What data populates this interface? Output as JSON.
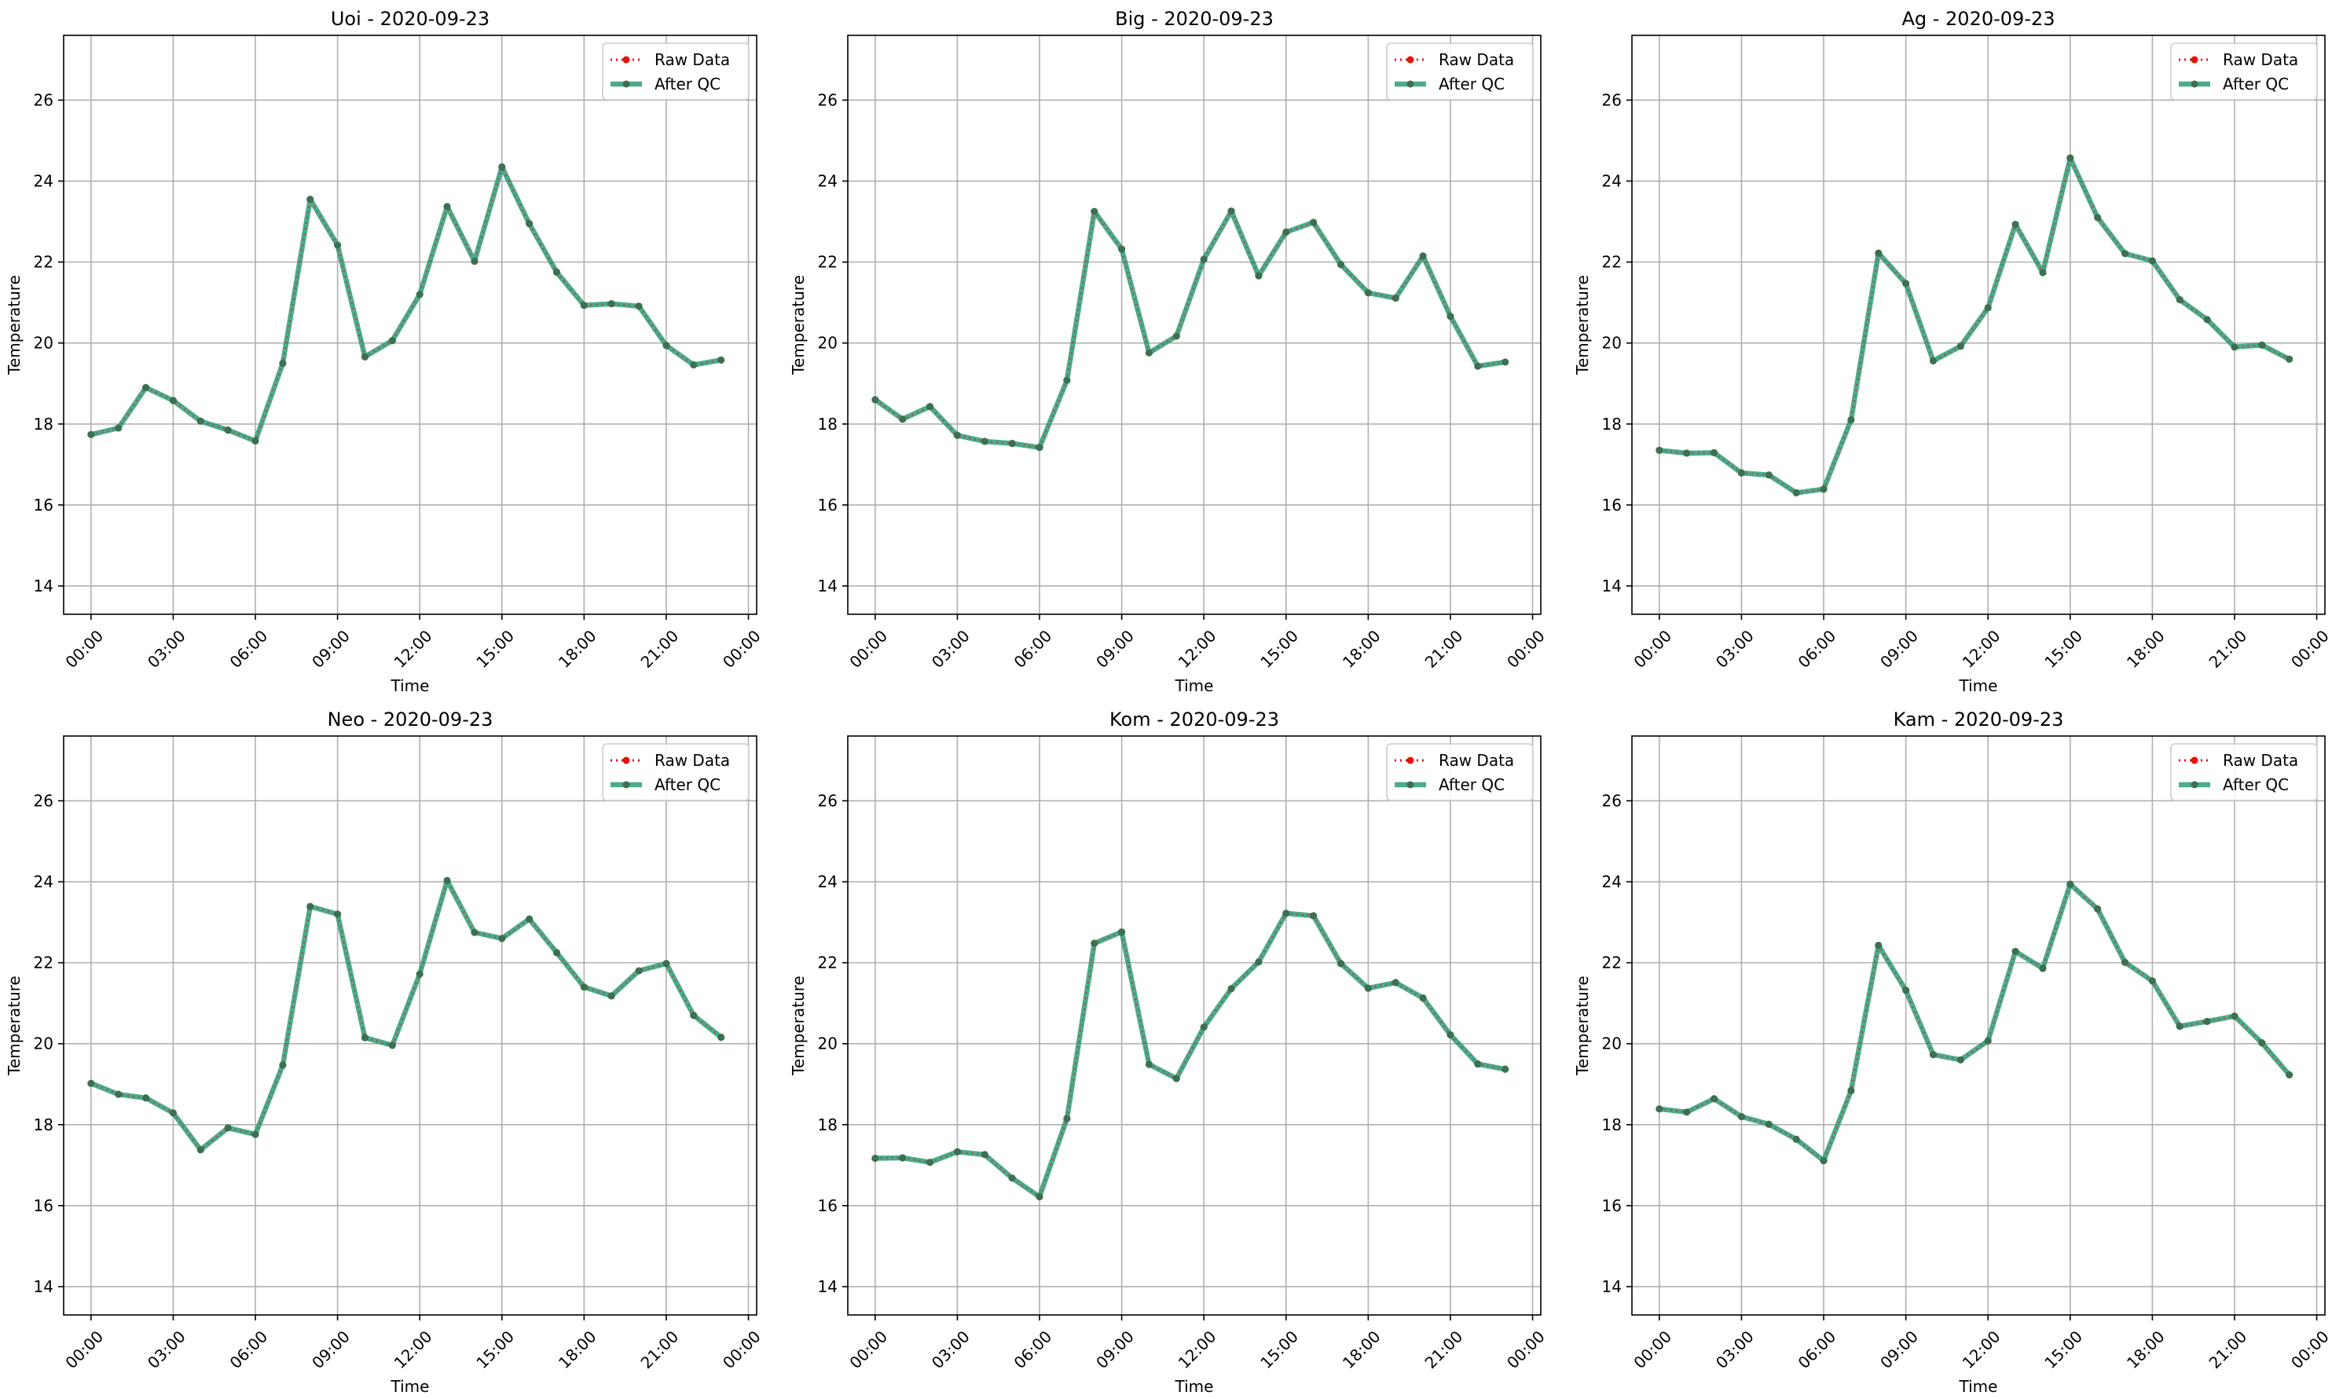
{
  "figure": {
    "x_axis_label": "Time",
    "y_axis_label": "Temperature",
    "legend": {
      "placement": "upper right",
      "raw_label": "Raw Data",
      "qc_label": "After QC"
    },
    "colors": {
      "raw": "#e3120b",
      "qc": "#2a9d78",
      "marker": "#3d7050",
      "grid": "#b0b0b0"
    }
  },
  "chart_data": [
    {
      "type": "line",
      "title": "Uoi - 2020-09-23",
      "xlabel": "Time",
      "ylabel": "Temperature",
      "xlim": [
        -1.0,
        24.3
      ],
      "ylim": [
        13.3,
        27.6
      ],
      "xticks": [
        "00:00",
        "03:00",
        "06:00",
        "09:00",
        "12:00",
        "15:00",
        "18:00",
        "21:00",
        "00:00"
      ],
      "yticks": [
        14,
        16,
        18,
        20,
        22,
        24,
        26
      ],
      "grid": true,
      "legend": "upper right",
      "x": [
        0,
        1,
        2,
        3,
        4,
        5,
        6,
        7,
        8,
        9,
        10,
        11,
        12,
        13,
        14,
        15,
        16,
        17,
        18,
        19,
        20,
        21,
        22,
        23
      ],
      "series": [
        {
          "name": "Raw Data",
          "values": [
            17.74,
            17.9,
            18.9,
            18.58,
            18.07,
            17.85,
            17.58,
            19.5,
            23.55,
            22.42,
            19.66,
            20.06,
            21.2,
            23.37,
            22.02,
            24.35,
            22.95,
            21.75,
            20.93,
            20.97,
            20.91,
            19.94,
            19.46,
            19.58
          ]
        },
        {
          "name": "After QC",
          "values": [
            17.74,
            17.9,
            18.9,
            18.58,
            18.07,
            17.85,
            17.58,
            19.5,
            23.55,
            22.42,
            19.66,
            20.06,
            21.2,
            23.37,
            22.02,
            24.35,
            22.95,
            21.75,
            20.93,
            20.97,
            20.91,
            19.94,
            19.46,
            19.58
          ]
        }
      ]
    },
    {
      "type": "line",
      "title": "Big - 2020-09-23",
      "xlabel": "Time",
      "ylabel": "Temperature",
      "xlim": [
        -1.0,
        24.3
      ],
      "ylim": [
        13.3,
        27.6
      ],
      "xticks": [
        "00:00",
        "03:00",
        "06:00",
        "09:00",
        "12:00",
        "15:00",
        "18:00",
        "21:00",
        "00:00"
      ],
      "yticks": [
        14,
        16,
        18,
        20,
        22,
        24,
        26
      ],
      "grid": true,
      "legend": "upper right",
      "x": [
        0,
        1,
        2,
        3,
        4,
        5,
        6,
        7,
        8,
        9,
        10,
        11,
        12,
        13,
        14,
        15,
        16,
        17,
        18,
        19,
        20,
        21,
        22,
        23
      ],
      "series": [
        {
          "name": "Raw Data",
          "values": [
            18.6,
            18.12,
            18.43,
            17.72,
            17.57,
            17.52,
            17.42,
            19.08,
            23.25,
            22.32,
            19.76,
            20.17,
            22.07,
            23.26,
            21.66,
            22.74,
            22.98,
            21.94,
            21.24,
            21.11,
            22.15,
            20.66,
            19.43,
            19.53
          ]
        },
        {
          "name": "After QC",
          "values": [
            18.6,
            18.12,
            18.43,
            17.72,
            17.57,
            17.52,
            17.42,
            19.08,
            23.25,
            22.32,
            19.76,
            20.17,
            22.07,
            23.26,
            21.66,
            22.74,
            22.98,
            21.94,
            21.24,
            21.11,
            22.15,
            20.66,
            19.43,
            19.53
          ]
        }
      ]
    },
    {
      "type": "line",
      "title": "Ag - 2020-09-23",
      "xlabel": "Time",
      "ylabel": "Temperature",
      "xlim": [
        -1.0,
        24.3
      ],
      "ylim": [
        13.3,
        27.6
      ],
      "xticks": [
        "00:00",
        "03:00",
        "06:00",
        "09:00",
        "12:00",
        "15:00",
        "18:00",
        "21:00",
        "00:00"
      ],
      "yticks": [
        14,
        16,
        18,
        20,
        22,
        24,
        26
      ],
      "grid": true,
      "legend": "upper right",
      "x": [
        0,
        1,
        2,
        3,
        4,
        5,
        6,
        7,
        8,
        9,
        10,
        11,
        12,
        13,
        14,
        15,
        16,
        17,
        18,
        19,
        20,
        21,
        22,
        23
      ],
      "series": [
        {
          "name": "Raw Data",
          "values": [
            17.35,
            17.28,
            17.29,
            16.79,
            16.74,
            16.3,
            16.39,
            18.1,
            22.22,
            21.47,
            19.56,
            19.92,
            20.87,
            22.93,
            21.74,
            24.57,
            23.1,
            22.21,
            22.03,
            21.07,
            20.58,
            19.9,
            19.95,
            19.6
          ]
        },
        {
          "name": "After QC",
          "values": [
            17.35,
            17.28,
            17.29,
            16.79,
            16.74,
            16.3,
            16.39,
            18.1,
            22.22,
            21.47,
            19.56,
            19.92,
            20.87,
            22.93,
            21.74,
            24.57,
            23.1,
            22.21,
            22.03,
            21.07,
            20.58,
            19.9,
            19.95,
            19.6
          ]
        }
      ]
    },
    {
      "type": "line",
      "title": "Neo - 2020-09-23",
      "xlabel": "Time",
      "ylabel": "Temperature",
      "xlim": [
        -1.0,
        24.3
      ],
      "ylim": [
        13.3,
        27.6
      ],
      "xticks": [
        "00:00",
        "03:00",
        "06:00",
        "09:00",
        "12:00",
        "15:00",
        "18:00",
        "21:00",
        "00:00"
      ],
      "yticks": [
        14,
        16,
        18,
        20,
        22,
        24,
        26
      ],
      "grid": true,
      "legend": "upper right",
      "x": [
        0,
        1,
        2,
        3,
        4,
        5,
        6,
        7,
        8,
        9,
        10,
        11,
        12,
        13,
        14,
        15,
        16,
        17,
        18,
        19,
        20,
        21,
        22,
        23
      ],
      "series": [
        {
          "name": "Raw Data",
          "values": [
            19.02,
            18.75,
            18.66,
            18.29,
            17.38,
            17.92,
            17.76,
            19.47,
            23.39,
            23.2,
            20.15,
            19.96,
            21.72,
            24.03,
            22.75,
            22.6,
            23.08,
            22.25,
            21.4,
            21.18,
            21.8,
            21.98,
            20.7,
            20.16
          ]
        },
        {
          "name": "After QC",
          "values": [
            19.02,
            18.75,
            18.66,
            18.29,
            17.38,
            17.92,
            17.76,
            19.47,
            23.39,
            23.2,
            20.15,
            19.96,
            21.72,
            24.03,
            22.75,
            22.6,
            23.08,
            22.25,
            21.4,
            21.18,
            21.8,
            21.98,
            20.7,
            20.16
          ]
        }
      ]
    },
    {
      "type": "line",
      "title": "Kom - 2020-09-23",
      "xlabel": "Time",
      "ylabel": "Temperature",
      "xlim": [
        -1.0,
        24.3
      ],
      "ylim": [
        13.3,
        27.6
      ],
      "xticks": [
        "00:00",
        "03:00",
        "06:00",
        "09:00",
        "12:00",
        "15:00",
        "18:00",
        "21:00",
        "00:00"
      ],
      "yticks": [
        14,
        16,
        18,
        20,
        22,
        24,
        26
      ],
      "grid": true,
      "legend": "upper right",
      "x": [
        0,
        1,
        2,
        3,
        4,
        5,
        6,
        7,
        8,
        9,
        10,
        11,
        12,
        13,
        14,
        15,
        16,
        17,
        18,
        19,
        20,
        21,
        22,
        23
      ],
      "series": [
        {
          "name": "Raw Data",
          "values": [
            17.17,
            17.18,
            17.07,
            17.33,
            17.26,
            16.68,
            16.22,
            18.15,
            22.48,
            22.76,
            19.49,
            19.14,
            20.41,
            21.36,
            22.02,
            23.22,
            23.16,
            21.98,
            21.37,
            21.51,
            21.13,
            20.22,
            19.5,
            19.37
          ]
        },
        {
          "name": "After QC",
          "values": [
            17.17,
            17.18,
            17.07,
            17.33,
            17.26,
            16.68,
            16.22,
            18.15,
            22.48,
            22.76,
            19.49,
            19.14,
            20.41,
            21.36,
            22.02,
            23.22,
            23.16,
            21.98,
            21.37,
            21.51,
            21.13,
            20.22,
            19.5,
            19.37
          ]
        }
      ]
    },
    {
      "type": "line",
      "title": "Kam - 2020-09-23",
      "xlabel": "Time",
      "ylabel": "Temperature",
      "xlim": [
        -1.0,
        24.3
      ],
      "ylim": [
        13.3,
        27.6
      ],
      "xticks": [
        "00:00",
        "03:00",
        "06:00",
        "09:00",
        "12:00",
        "15:00",
        "18:00",
        "21:00",
        "00:00"
      ],
      "yticks": [
        14,
        16,
        18,
        20,
        22,
        24,
        26
      ],
      "grid": true,
      "legend": "upper right",
      "x": [
        0,
        1,
        2,
        3,
        4,
        5,
        6,
        7,
        8,
        9,
        10,
        11,
        12,
        13,
        14,
        15,
        16,
        17,
        18,
        19,
        20,
        21,
        22,
        23
      ],
      "series": [
        {
          "name": "Raw Data",
          "values": [
            18.39,
            18.31,
            18.64,
            18.2,
            18.01,
            17.64,
            17.11,
            18.84,
            22.43,
            21.32,
            19.73,
            19.6,
            20.07,
            22.28,
            21.86,
            23.94,
            23.33,
            22.01,
            21.55,
            20.43,
            20.55,
            20.68,
            20.02,
            19.23
          ]
        },
        {
          "name": "After QC",
          "values": [
            18.39,
            18.31,
            18.64,
            18.2,
            18.01,
            17.64,
            17.11,
            18.84,
            22.43,
            21.32,
            19.73,
            19.6,
            20.07,
            22.28,
            21.86,
            23.94,
            23.33,
            22.01,
            21.55,
            20.43,
            20.55,
            20.68,
            20.02,
            19.23
          ]
        }
      ]
    }
  ]
}
